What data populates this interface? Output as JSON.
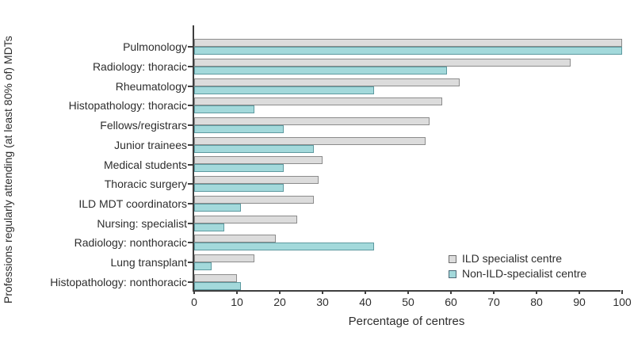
{
  "chart_data": {
    "type": "bar",
    "orientation": "horizontal",
    "xlabel": "Percentage of centres",
    "ylabel": "Professions regularly attending (at least 80% of) MDTs",
    "xlim": [
      0,
      100
    ],
    "xticks": [
      0,
      10,
      20,
      30,
      40,
      50,
      60,
      70,
      80,
      90,
      100
    ],
    "grid": false,
    "legend_position": "inside-lower-right",
    "categories": [
      "Pulmonology",
      "Radiology: thoracic",
      "Rheumatology",
      "Histopathology: thoracic",
      "Fellows/registrars",
      "Junior trainees",
      "Medical students",
      "Thoracic surgery",
      "ILD MDT coordinators",
      "Nursing: specialist",
      "Radiology: nonthoracic",
      "Lung transplant",
      "Histopathology: nonthoracic"
    ],
    "series": [
      {
        "name": "ILD specialist centre",
        "fill_color": "#dcdcdc",
        "border_color": "#8c8c8c",
        "values": [
          100,
          88,
          62,
          58,
          55,
          54,
          30,
          29,
          28,
          24,
          19,
          14,
          10
        ]
      },
      {
        "name": "Non-ILD-specialist centre",
        "fill_color": "#a3d9db",
        "border_color": "#5d9aa0",
        "values": [
          100,
          59,
          42,
          14,
          21,
          28,
          21,
          21,
          11,
          7,
          42,
          4,
          11
        ]
      }
    ],
    "axis_color": "#3f3f3f"
  }
}
